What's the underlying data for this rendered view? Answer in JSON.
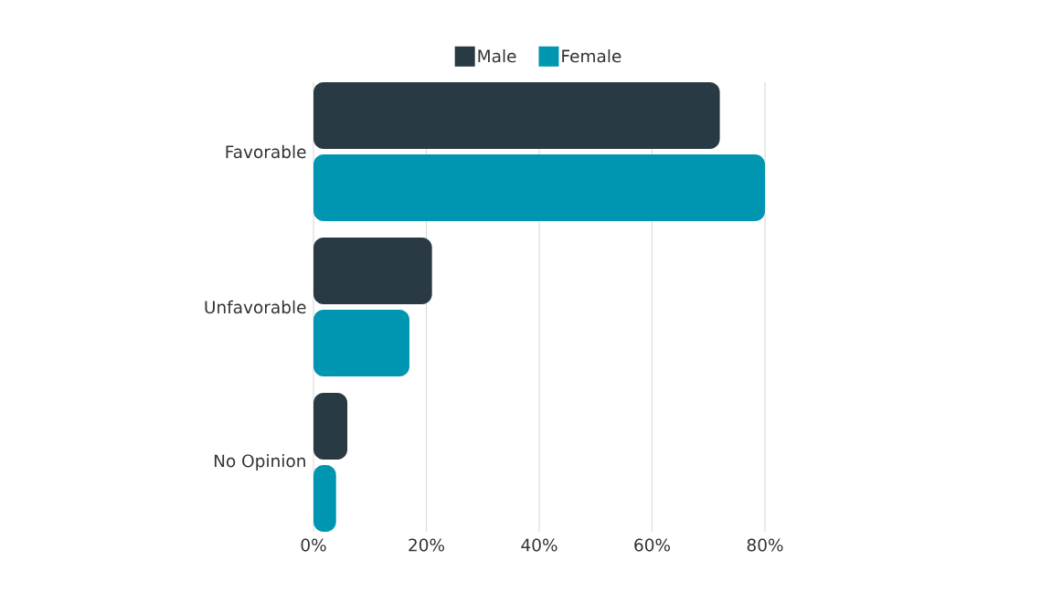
{
  "chart_data": {
    "type": "bar",
    "orientation": "horizontal",
    "categories": [
      "Favorable",
      "Unfavorable",
      "No Opinion"
    ],
    "series": [
      {
        "name": "Male",
        "color": "#293a45",
        "values": [
          72,
          21,
          6
        ]
      },
      {
        "name": "Female",
        "color": "#0095b0",
        "values": [
          80,
          17,
          4
        ]
      }
    ],
    "xlim": [
      0,
      80
    ],
    "xticks": [
      {
        "value": 0,
        "label": "0%"
      },
      {
        "value": 20,
        "label": "20%"
      },
      {
        "value": 40,
        "label": "40%"
      },
      {
        "value": 60,
        "label": "60%"
      },
      {
        "value": 80,
        "label": "80%"
      }
    ],
    "grid": "x",
    "legend": "top"
  }
}
